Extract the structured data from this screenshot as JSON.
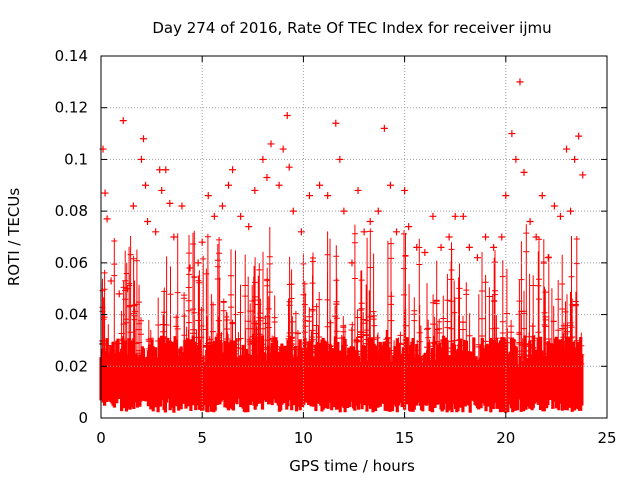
{
  "chart_data": {
    "type": "scatter",
    "title": "Day 274 of 2016, Rate Of TEC Index for receiver ijmu",
    "xlabel": "GPS time / hours",
    "ylabel": "ROTI / TECUs",
    "xlim": [
      0,
      25
    ],
    "ylim": [
      0,
      0.14
    ],
    "x_ticks": [
      0,
      5,
      10,
      15,
      20,
      25
    ],
    "x_tick_labels": [
      "0",
      "5",
      "10",
      "15",
      "20",
      "25"
    ],
    "y_ticks": [
      0,
      0.02,
      0.04,
      0.06,
      0.08,
      0.1,
      0.12,
      0.14
    ],
    "y_tick_labels": [
      "0",
      "0.02",
      "0.04",
      "0.06",
      "0.08",
      "0.1",
      "0.12",
      "0.14"
    ],
    "grid": true,
    "marker": "plus",
    "marker_color": "#ff0000",
    "series": [
      {
        "name": "ROTI",
        "x": [
          0.1,
          0.2,
          0.3,
          0.5,
          0.9,
          1.1,
          1.3,
          1.6,
          2.0,
          2.1,
          2.2,
          2.3,
          2.7,
          2.9,
          3.0,
          3.2,
          3.4,
          3.6,
          4.0,
          4.4,
          4.8,
          5.0,
          5.3,
          5.6,
          6.0,
          6.3,
          6.5,
          6.9,
          7.3,
          7.6,
          8.0,
          8.2,
          8.4,
          8.8,
          9.0,
          9.2,
          9.3,
          9.5,
          9.9,
          10.3,
          10.8,
          11.2,
          11.6,
          11.8,
          12.0,
          12.4,
          12.7,
          13.0,
          13.3,
          13.7,
          14.0,
          14.3,
          14.6,
          15.0,
          15.2,
          15.6,
          16.0,
          16.4,
          16.8,
          17.2,
          17.5,
          17.9,
          18.2,
          18.6,
          19.0,
          19.4,
          19.8,
          20.0,
          20.3,
          20.5,
          20.7,
          20.9,
          21.2,
          21.5,
          21.8,
          22.1,
          22.4,
          22.7,
          23.0,
          23.2,
          23.4,
          23.6,
          23.8
        ],
        "y": [
          0.104,
          0.087,
          0.077,
          0.053,
          0.048,
          0.115,
          0.05,
          0.082,
          0.1,
          0.108,
          0.09,
          0.076,
          0.072,
          0.096,
          0.088,
          0.096,
          0.083,
          0.07,
          0.082,
          0.058,
          0.06,
          0.068,
          0.086,
          0.078,
          0.082,
          0.09,
          0.096,
          0.078,
          0.074,
          0.088,
          0.1,
          0.093,
          0.106,
          0.09,
          0.104,
          0.117,
          0.097,
          0.08,
          0.072,
          0.086,
          0.09,
          0.086,
          0.114,
          0.1,
          0.08,
          0.06,
          0.088,
          0.072,
          0.076,
          0.08,
          0.112,
          0.09,
          0.072,
          0.088,
          0.074,
          0.066,
          0.064,
          0.078,
          0.066,
          0.07,
          0.078,
          0.078,
          0.066,
          0.062,
          0.07,
          0.066,
          0.07,
          0.086,
          0.11,
          0.1,
          0.13,
          0.095,
          0.076,
          0.07,
          0.086,
          0.062,
          0.082,
          0.078,
          0.104,
          0.08,
          0.1,
          0.109,
          0.094
        ]
      }
    ]
  }
}
